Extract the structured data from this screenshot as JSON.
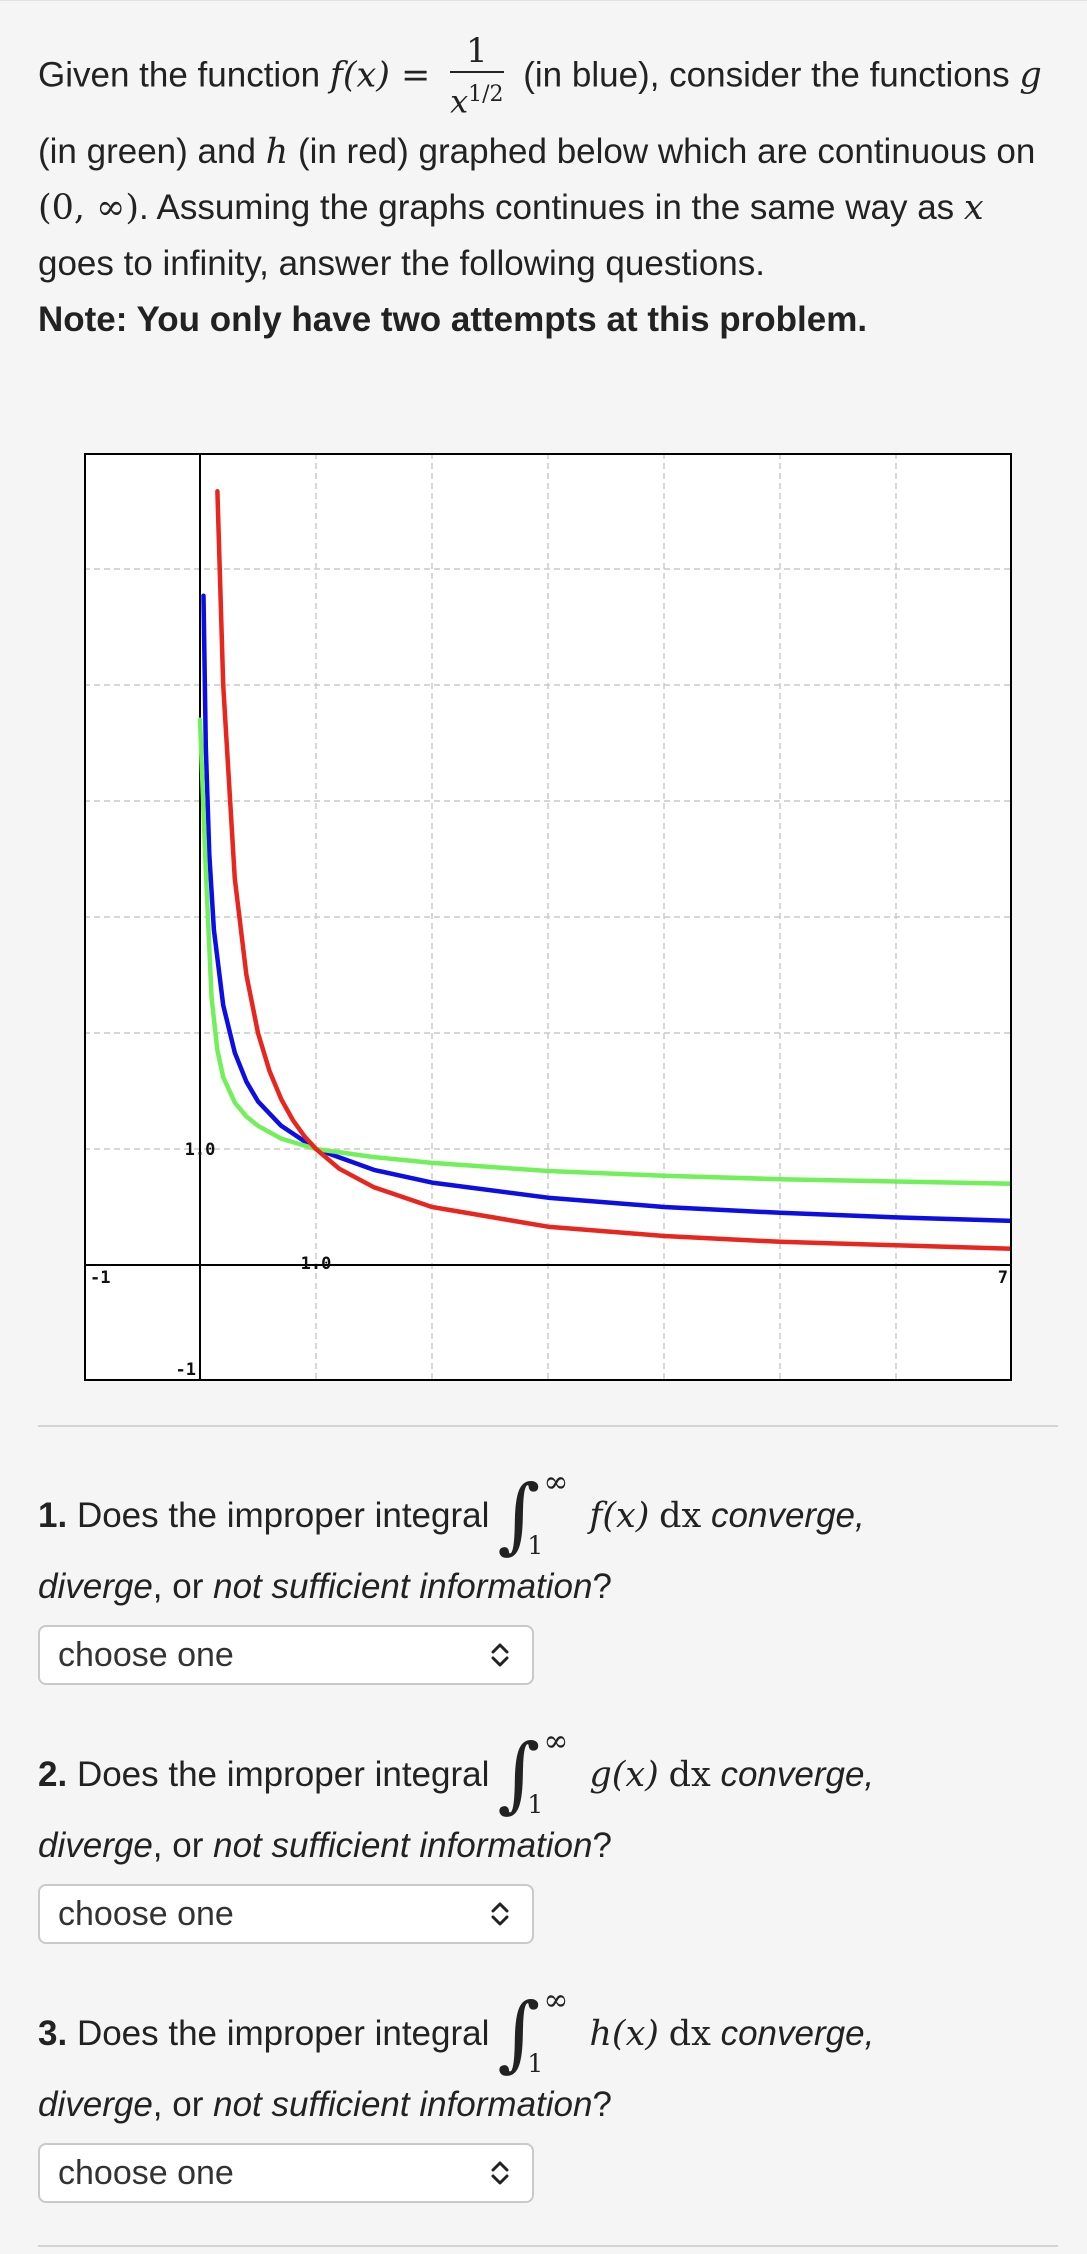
{
  "intro": {
    "p1": "Given the function",
    "f_lhs": "f(x) =",
    "frac_num": "1",
    "frac_den_base": "x",
    "frac_den_exp": "1/2",
    "p2": "(in blue), consider the",
    "p3": "functions",
    "g": "g",
    "p4": "(in green) and",
    "h": "h",
    "p5": "(in red) graphed below which are continuous on",
    "interval": "(0, ∞)",
    "p6": ". Assuming the graphs continues in the same way as",
    "x": "x",
    "p7": "goes to infinity, answer the following questions.",
    "note": "Note: You only have two attempts at this problem."
  },
  "chart_data": {
    "type": "line",
    "xlim": [
      -1,
      7
    ],
    "ylim": [
      -1,
      7
    ],
    "grid": true,
    "tick_labels": {
      "x_min": "-1",
      "x_one": "1.0",
      "x_max": "7",
      "y_min": "-1",
      "y_one": "1.0"
    },
    "series": [
      {
        "name": "f",
        "label": "f(x) = 1/x^(1/2)",
        "color": "#0d0de6",
        "x": [
          0.03,
          0.05,
          0.08,
          0.12,
          0.2,
          0.3,
          0.4,
          0.5,
          0.7,
          1.0,
          1.5,
          2,
          3,
          4,
          5,
          6,
          7
        ],
        "y": [
          5.77,
          4.47,
          3.54,
          2.89,
          2.24,
          1.83,
          1.58,
          1.41,
          1.2,
          1.0,
          0.82,
          0.71,
          0.58,
          0.5,
          0.45,
          0.41,
          0.38
        ]
      },
      {
        "name": "g",
        "label": "g",
        "color": "#72f05a",
        "x": [
          0.0,
          0.05,
          0.1,
          0.15,
          0.2,
          0.3,
          0.4,
          0.5,
          0.7,
          1.0,
          1.5,
          2,
          3,
          4,
          5,
          6,
          7
        ],
        "y": [
          4.7,
          3.4,
          2.3,
          1.85,
          1.62,
          1.4,
          1.28,
          1.2,
          1.09,
          1.0,
          0.93,
          0.88,
          0.81,
          0.77,
          0.74,
          0.72,
          0.7
        ]
      },
      {
        "name": "h",
        "label": "h",
        "color": "#e8261e",
        "x": [
          0.15,
          0.2,
          0.3,
          0.4,
          0.5,
          0.6,
          0.7,
          0.8,
          0.9,
          1.0,
          1.2,
          1.5,
          2,
          3,
          4,
          5,
          6,
          7
        ],
        "y": [
          6.67,
          5.0,
          3.33,
          2.5,
          2.0,
          1.67,
          1.43,
          1.25,
          1.11,
          1.0,
          0.83,
          0.67,
          0.5,
          0.33,
          0.25,
          0.2,
          0.17,
          0.14
        ]
      }
    ]
  },
  "questions": [
    {
      "num": "1.",
      "text": "Does the improper integral",
      "upper": "∞",
      "lower": "1",
      "integrand": "f(x)",
      "dx": "dx",
      "tail1": "converge,",
      "w_diverge": "diverge",
      "w_or": ", or",
      "w_nsi": "not sufficient information",
      "w_q": "?",
      "select": "choose one"
    },
    {
      "num": "2.",
      "text": "Does the improper integral",
      "upper": "∞",
      "lower": "1",
      "integrand": "g(x)",
      "dx": "dx",
      "tail1": "converge,",
      "w_diverge": "diverge",
      "w_or": ", or",
      "w_nsi": "not sufficient information",
      "w_q": "?",
      "select": "choose one"
    },
    {
      "num": "3.",
      "text": "Does the improper integral",
      "upper": "∞",
      "lower": "1",
      "integrand": "h(x)",
      "dx": "dx",
      "tail1": "converge,",
      "w_diverge": "diverge",
      "w_or": ", or",
      "w_nsi": "not sufficient information",
      "w_q": "?",
      "select": "choose one"
    }
  ]
}
